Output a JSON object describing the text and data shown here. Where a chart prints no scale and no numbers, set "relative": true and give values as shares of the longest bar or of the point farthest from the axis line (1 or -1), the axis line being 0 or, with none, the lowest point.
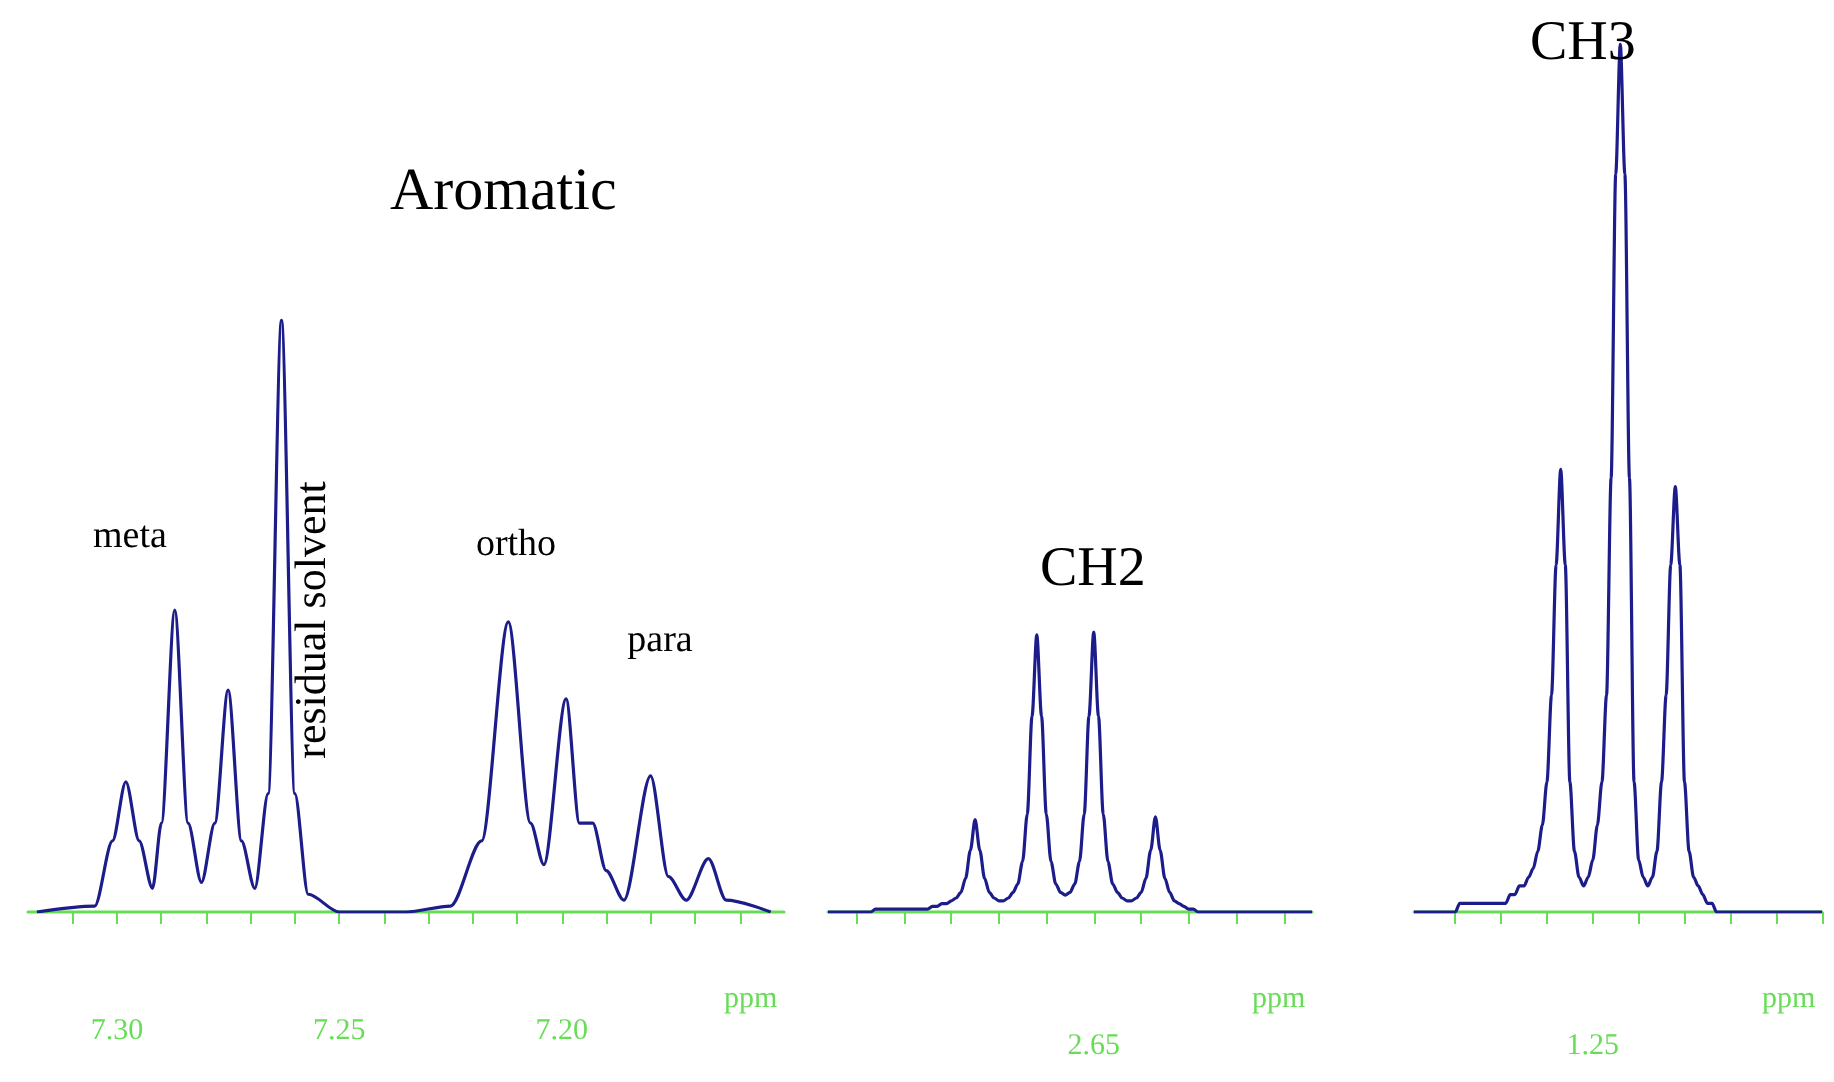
{
  "chart_data": [
    {
      "type": "line",
      "title": "Aromatic",
      "xlabel": "ppm",
      "relative": true,
      "xlim": [
        7.32,
        7.15
      ],
      "xticks": [
        {
          "value": 7.31,
          "label": null
        },
        "7.30",
        {
          "value": 7.29,
          "label": null
        },
        {
          "value": 7.28,
          "label": null
        },
        {
          "value": 7.27,
          "label": null
        },
        {
          "value": 7.26,
          "label": null
        },
        7.25,
        {
          "value": 7.24,
          "label": null
        },
        {
          "value": 7.23,
          "label": null
        },
        {
          "value": 7.22,
          "label": null
        },
        {
          "value": 7.21,
          "label": null
        },
        {
          "value": 7.2,
          "label": "7.20"
        },
        {
          "value": 7.19,
          "label": null
        },
        {
          "value": 7.18,
          "label": null
        },
        {
          "value": 7.17,
          "label": null
        },
        {
          "value": 7.16,
          "label": null
        }
      ],
      "x": [
        7.318,
        7.305,
        7.301,
        7.298,
        7.295,
        7.292,
        7.29,
        7.287,
        7.284,
        7.281,
        7.278,
        7.275,
        7.272,
        7.269,
        7.266,
        7.263,
        7.26,
        7.257,
        7.25,
        7.235,
        7.225,
        7.218,
        7.212,
        7.207,
        7.204,
        7.199,
        7.196,
        7.193,
        7.19,
        7.186,
        7.18,
        7.176,
        7.172,
        7.167,
        7.163,
        7.153
      ],
      "series": [
        {
          "color": "#1c1c8a",
          "values": [
            0,
            0.01,
            0.12,
            0.22,
            0.12,
            0.04,
            0.15,
            0.51,
            0.15,
            0.05,
            0.15,
            0.375,
            0.12,
            0.04,
            0.2,
            1.0,
            0.2,
            0.03,
            0,
            0,
            0.01,
            0.12,
            0.49,
            0.15,
            0.08,
            0.36,
            0.15,
            0.15,
            0.07,
            0.02,
            0.23,
            0.06,
            0.02,
            0.09,
            0.02,
            0
          ]
        }
      ],
      "annotations": [
        "meta",
        "residual solvent",
        "ortho",
        "para"
      ]
    },
    {
      "type": "line",
      "title": "CH2",
      "xlabel": "ppm",
      "relative": true,
      "categories": [
        null,
        null,
        null,
        null,
        null,
        null,
        null,
        null,
        null,
        null,
        null,
        null,
        null,
        null,
        null,
        null,
        null,
        null,
        null,
        null,
        null,
        null,
        null,
        null,
        null,
        null,
        null,
        null,
        null,
        null,
        null,
        null,
        null,
        null,
        null,
        null,
        null,
        null,
        null,
        null,
        null,
        null,
        null,
        null,
        null,
        null,
        null,
        null,
        null,
        null,
        null,
        null,
        null,
        null,
        null,
        null,
        null,
        null,
        null,
        null,
        null,
        null,
        null,
        null,
        null,
        null,
        null,
        null,
        null,
        null,
        null,
        null,
        null,
        null,
        null,
        null,
        null,
        null,
        null,
        null,
        null,
        null,
        null,
        null,
        null,
        null,
        null,
        null,
        null,
        null,
        null,
        null,
        null,
        null,
        null,
        null,
        null,
        null,
        null,
        null,
        null,
        null,
        null
      ],
      "series": [
        {
          "color": "#1c1c8a",
          "values": [
            0,
            0,
            0,
            0,
            0,
            0,
            0,
            0,
            0,
            0,
            0.01,
            0.01,
            0.01,
            0.01,
            0.01,
            0.01,
            0.01,
            0.01,
            0.01,
            0.01,
            0.01,
            0.01,
            0.02,
            0.02,
            0.03,
            0.03,
            0.04,
            0.05,
            0.07,
            0.12,
            0.22,
            0.33,
            0.22,
            0.12,
            0.07,
            0.05,
            0.04,
            0.04,
            0.05,
            0.07,
            0.1,
            0.18,
            0.35,
            0.7,
            0.99,
            0.7,
            0.35,
            0.18,
            0.1,
            0.07,
            0.06,
            0.07,
            0.1,
            0.18,
            0.35,
            0.7,
            1.0,
            0.7,
            0.35,
            0.18,
            0.1,
            0.07,
            0.05,
            0.04,
            0.04,
            0.05,
            0.07,
            0.12,
            0.22,
            0.34,
            0.22,
            0.12,
            0.07,
            0.04,
            0.03,
            0.02,
            0.01,
            0.01,
            0,
            0,
            0,
            0,
            0,
            0,
            0,
            0,
            0,
            0,
            0,
            0,
            0,
            0,
            0,
            0,
            0,
            0,
            0,
            0,
            0,
            0,
            0,
            0,
            0
          ]
        }
      ],
      "annotations": [
        "2.65"
      ]
    },
    {
      "type": "line",
      "title": "CH3",
      "xlabel": "ppm",
      "relative": true,
      "categories": [
        null,
        null,
        null,
        null,
        null,
        null,
        null,
        null,
        null,
        null,
        null,
        null,
        null,
        null,
        null,
        null,
        null,
        null,
        null,
        null,
        null,
        null,
        null,
        null,
        null,
        null,
        null,
        null,
        null,
        null,
        null,
        null,
        null,
        null,
        null,
        null,
        null,
        null,
        null,
        null,
        null,
        null,
        null,
        null,
        null,
        null,
        null,
        null,
        null,
        null,
        null,
        null,
        null,
        null,
        null,
        null,
        null,
        null,
        null,
        null,
        null,
        null,
        null,
        null,
        null,
        null,
        null,
        null,
        null,
        null,
        null,
        null,
        null,
        null,
        null,
        null,
        null,
        null,
        null,
        null,
        null,
        null,
        null,
        null,
        null,
        null,
        null,
        null,
        null,
        null
      ],
      "series": [
        {
          "color": "#1c1c8a",
          "values": [
            0,
            0,
            0,
            0,
            0,
            0,
            0,
            0,
            0,
            0,
            0.01,
            0.01,
            0.01,
            0.01,
            0.01,
            0.01,
            0.01,
            0.01,
            0.01,
            0.01,
            0.01,
            0.02,
            0.02,
            0.03,
            0.03,
            0.04,
            0.05,
            0.07,
            0.1,
            0.15,
            0.25,
            0.4,
            0.51,
            0.4,
            0.15,
            0.07,
            0.04,
            0.03,
            0.04,
            0.06,
            0.1,
            0.15,
            0.25,
            0.5,
            0.85,
            1.0,
            0.85,
            0.5,
            0.15,
            0.06,
            0.04,
            0.03,
            0.04,
            0.07,
            0.15,
            0.25,
            0.4,
            0.49,
            0.4,
            0.15,
            0.07,
            0.04,
            0.03,
            0.02,
            0.01,
            0.01,
            0,
            0,
            0,
            0,
            0,
            0,
            0,
            0,
            0,
            0,
            0,
            0,
            0,
            0,
            0,
            0,
            0,
            0,
            0,
            0,
            0,
            0,
            0,
            0
          ]
        }
      ],
      "annotations": [
        "1.25"
      ]
    }
  ]
}
